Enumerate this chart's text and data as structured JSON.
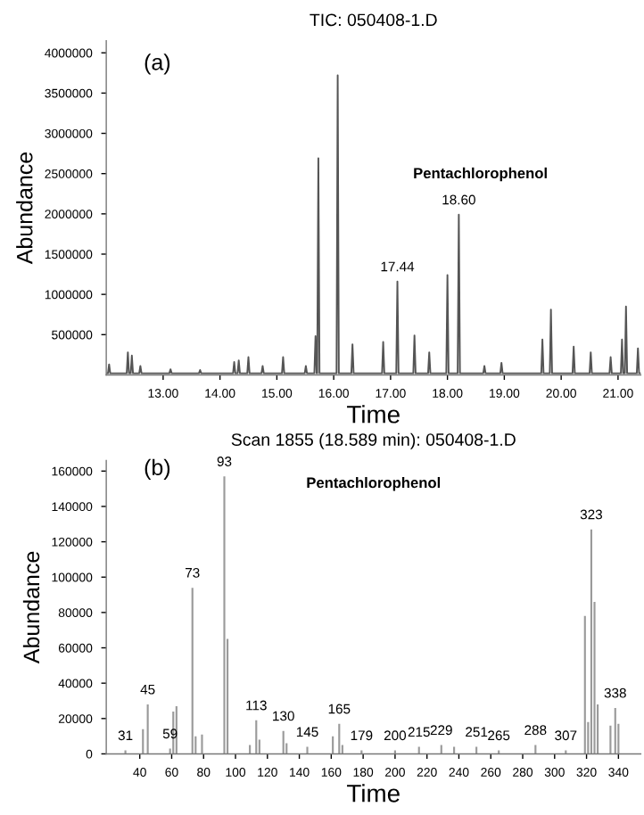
{
  "chart_data": [
    {
      "type": "line",
      "title": "TIC: 050408-1.D",
      "xlabel": "Time",
      "ylabel": "Abundance",
      "color": "#555555",
      "grid": false,
      "legend": false,
      "annotations": [
        "(a)",
        "Pentachlorophenol",
        {
          "text": "17.44",
          "x": 17.12,
          "y": 1160000
        },
        {
          "text": "18.60",
          "x": 18.2,
          "y": 1990000
        }
      ],
      "xlim": [
        12.0,
        21.4
      ],
      "xticks": [
        {
          "value": 13,
          "label": "13.00"
        },
        {
          "value": 14,
          "label": "14.00"
        },
        {
          "value": 15,
          "label": "15.00"
        },
        {
          "value": 16,
          "label": "16.00"
        },
        {
          "value": 17,
          "label": "17.00"
        },
        {
          "value": 18,
          "label": "18.00"
        },
        {
          "value": 19,
          "label": "19.00"
        },
        {
          "value": 20,
          "label": "20.00"
        },
        {
          "value": 21,
          "label": "21.00"
        }
      ],
      "ylim": [
        0,
        4150000
      ],
      "yticks": [
        500000,
        1000000,
        1500000,
        2000000,
        2500000,
        3000000,
        3500000,
        4000000
      ],
      "x": [
        12.0,
        12.03,
        12.05,
        12.07,
        12.36,
        12.38,
        12.4,
        12.43,
        12.45,
        12.47,
        12.58,
        12.6,
        12.62,
        13.11,
        13.13,
        13.15,
        13.63,
        13.65,
        13.67,
        14.23,
        14.25,
        14.27,
        14.31,
        14.33,
        14.35,
        14.48,
        14.5,
        14.52,
        14.73,
        14.75,
        14.77,
        15.09,
        15.11,
        15.13,
        15.49,
        15.51,
        15.53,
        15.66,
        15.68,
        15.7,
        15.71,
        15.73,
        15.75,
        16.05,
        16.07,
        16.09,
        16.31,
        16.33,
        16.35,
        16.85,
        16.87,
        16.89,
        17.1,
        17.12,
        17.14,
        17.4,
        17.42,
        17.44,
        17.66,
        17.68,
        17.7,
        17.98,
        18.0,
        18.02,
        18.18,
        18.2,
        18.22,
        18.63,
        18.65,
        18.67,
        18.93,
        18.95,
        18.97,
        19.65,
        19.67,
        19.69,
        19.8,
        19.82,
        19.84,
        20.2,
        20.22,
        20.24,
        20.5,
        20.52,
        20.54,
        20.85,
        20.87,
        20.89,
        21.05,
        21.07,
        21.09,
        21.12,
        21.14,
        21.16,
        21.33,
        21.35,
        21.37,
        21.4
      ],
      "values": [
        20000,
        20000,
        130000,
        20000,
        20000,
        280000,
        20000,
        20000,
        240000,
        20000,
        20000,
        110000,
        20000,
        20000,
        70000,
        20000,
        20000,
        60000,
        20000,
        20000,
        160000,
        20000,
        20000,
        180000,
        20000,
        20000,
        220000,
        20000,
        20000,
        110000,
        20000,
        20000,
        220000,
        20000,
        20000,
        110000,
        20000,
        20000,
        480000,
        20000,
        20000,
        2690000,
        20000,
        20000,
        3720000,
        20000,
        20000,
        380000,
        20000,
        20000,
        410000,
        20000,
        20000,
        1160000,
        20000,
        20000,
        490000,
        20000,
        20000,
        280000,
        20000,
        20000,
        1240000,
        20000,
        20000,
        1990000,
        20000,
        20000,
        110000,
        20000,
        20000,
        150000,
        20000,
        20000,
        440000,
        20000,
        20000,
        810000,
        20000,
        20000,
        350000,
        20000,
        20000,
        280000,
        20000,
        20000,
        220000,
        20000,
        20000,
        440000,
        20000,
        20000,
        850000,
        20000,
        20000,
        330000,
        20000,
        20000
      ]
    },
    {
      "type": "bar",
      "title": "Scan 1855 (18.589 min): 050408-1.D",
      "xlabel": "Time",
      "ylabel": "Abundance",
      "color": "#9a9a9a",
      "grid": false,
      "legend": false,
      "annotations": [
        "(b)",
        "Pentachlorophenol",
        {
          "text": "31",
          "x": 31,
          "y": 2000
        },
        {
          "text": "45",
          "x": 45,
          "y": 28000
        },
        {
          "text": "59",
          "x": 59,
          "y": 3000
        },
        {
          "text": "73",
          "x": 73,
          "y": 94000
        },
        {
          "text": "93",
          "x": 93,
          "y": 157000
        },
        {
          "text": "113",
          "x": 113,
          "y": 19000
        },
        {
          "text": "130",
          "x": 130,
          "y": 13000
        },
        {
          "text": "145",
          "x": 145,
          "y": 4000
        },
        {
          "text": "165",
          "x": 165,
          "y": 17000
        },
        {
          "text": "179",
          "x": 179,
          "y": 2000
        },
        {
          "text": "200",
          "x": 200,
          "y": 2000
        },
        {
          "text": "215",
          "x": 215,
          "y": 4000
        },
        {
          "text": "229",
          "x": 229,
          "y": 5000
        },
        {
          "text": "251",
          "x": 251,
          "y": 4000
        },
        {
          "text": "265",
          "x": 265,
          "y": 2000
        },
        {
          "text": "288",
          "x": 288,
          "y": 5000
        },
        {
          "text": "307",
          "x": 307,
          "y": 2000
        },
        {
          "text": "323",
          "x": 323,
          "y": 127000
        },
        {
          "text": "338",
          "x": 338,
          "y": 26000
        }
      ],
      "xlim": [
        19,
        354
      ],
      "xticks": [
        40,
        60,
        80,
        100,
        120,
        140,
        160,
        180,
        200,
        220,
        240,
        260,
        280,
        300,
        320,
        340
      ],
      "ylim": [
        0,
        166000
      ],
      "yticks": [
        0,
        20000,
        40000,
        60000,
        80000,
        100000,
        120000,
        140000,
        160000
      ],
      "x": [
        31,
        42,
        45,
        59,
        61,
        63,
        73,
        75,
        79,
        93,
        95,
        109,
        113,
        115,
        130,
        132,
        145,
        161,
        165,
        167,
        179,
        200,
        215,
        229,
        237,
        251,
        265,
        288,
        307,
        319,
        321,
        323,
        325,
        327,
        335,
        338,
        340
      ],
      "values": [
        2000,
        14000,
        28000,
        3000,
        24000,
        27000,
        94000,
        10000,
        11000,
        157000,
        65000,
        5000,
        19000,
        8000,
        13000,
        6000,
        4000,
        10000,
        17000,
        5000,
        2000,
        2000,
        4000,
        5000,
        4000,
        4000,
        2000,
        5000,
        2000,
        78000,
        18000,
        127000,
        86000,
        28000,
        16000,
        26000,
        17000
      ]
    }
  ]
}
